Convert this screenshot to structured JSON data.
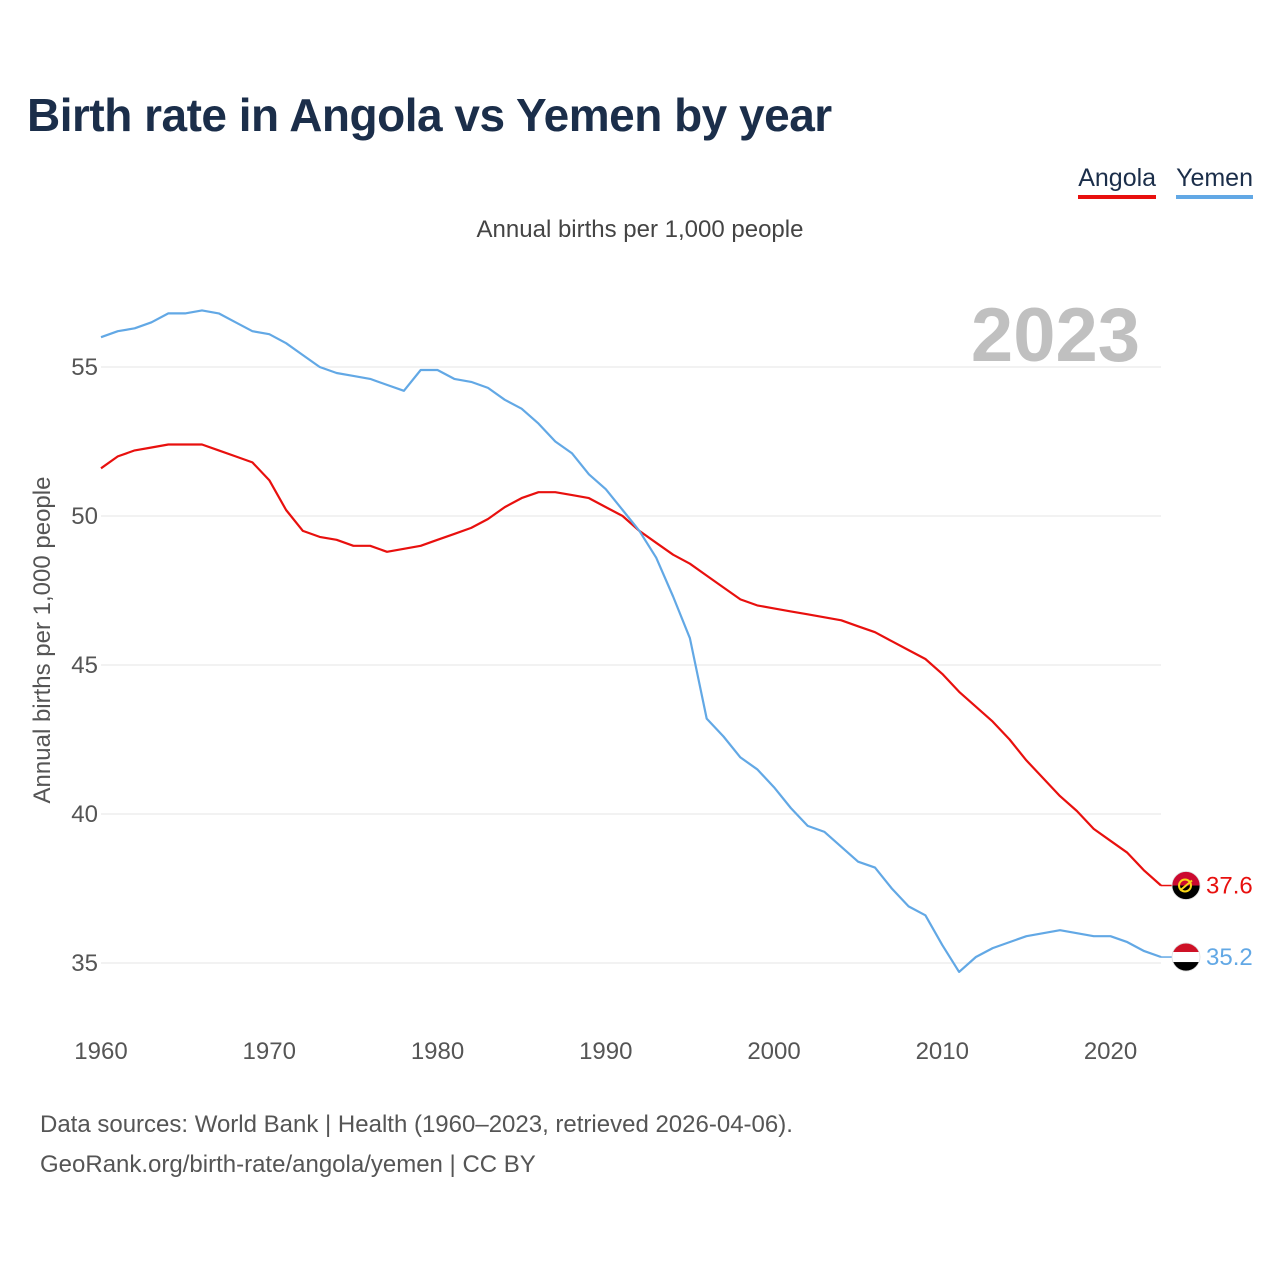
{
  "title": "Birth rate in Angola vs Yemen by year",
  "subtitle": "Annual births per 1,000 people",
  "legend": {
    "angola": "Angola",
    "yemen": "Yemen"
  },
  "footer": {
    "line1": "Data sources: World Bank | Health (1960–2023, retrieved 2026-04-06).",
    "line2": "GeoRank.org/birth-rate/angola/yemen | CC BY"
  },
  "colors": {
    "angola": "#e8100e",
    "yemen": "#62a8e5"
  },
  "chart_data": {
    "type": "line",
    "title": "Birth rate in Angola vs Yemen by year",
    "ylabel": "Annual births per 1,000 people",
    "xlabel": "",
    "xlim": [
      1960,
      2023
    ],
    "ylim": [
      33.5,
      57.5
    ],
    "x_ticks": [
      1960,
      1970,
      1980,
      1990,
      2000,
      2010,
      2020
    ],
    "y_ticks": [
      35,
      40,
      45,
      50,
      55
    ],
    "year_label": "2023",
    "x": [
      1960,
      1961,
      1962,
      1963,
      1964,
      1965,
      1966,
      1967,
      1968,
      1969,
      1970,
      1971,
      1972,
      1973,
      1974,
      1975,
      1976,
      1977,
      1978,
      1979,
      1980,
      1981,
      1982,
      1983,
      1984,
      1985,
      1986,
      1987,
      1988,
      1989,
      1990,
      1991,
      1992,
      1993,
      1994,
      1995,
      1996,
      1997,
      1998,
      1999,
      2000,
      2001,
      2002,
      2003,
      2004,
      2005,
      2006,
      2007,
      2008,
      2009,
      2010,
      2011,
      2012,
      2013,
      2014,
      2015,
      2016,
      2017,
      2018,
      2019,
      2020,
      2021,
      2022,
      2023
    ],
    "series": [
      {
        "name": "Angola",
        "end_label": "37.6",
        "values": [
          51.6,
          52.0,
          52.2,
          52.3,
          52.4,
          52.4,
          52.4,
          52.2,
          52.0,
          51.8,
          51.2,
          50.2,
          49.5,
          49.3,
          49.2,
          49.0,
          49.0,
          48.8,
          48.9,
          49.0,
          49.2,
          49.4,
          49.6,
          49.9,
          50.3,
          50.6,
          50.8,
          50.8,
          50.7,
          50.6,
          50.3,
          50.0,
          49.5,
          49.1,
          48.7,
          48.4,
          48.0,
          47.6,
          47.2,
          47.0,
          46.9,
          46.8,
          46.7,
          46.6,
          46.5,
          46.3,
          46.1,
          45.8,
          45.5,
          45.2,
          44.7,
          44.1,
          43.6,
          43.1,
          42.5,
          41.8,
          41.2,
          40.6,
          40.1,
          39.5,
          39.1,
          38.7,
          38.1,
          37.6
        ]
      },
      {
        "name": "Yemen",
        "end_label": "35.2",
        "values": [
          56.0,
          56.2,
          56.3,
          56.5,
          56.8,
          56.8,
          56.9,
          56.8,
          56.5,
          56.2,
          56.1,
          55.8,
          55.4,
          55.0,
          54.8,
          54.7,
          54.6,
          54.4,
          54.2,
          54.9,
          54.9,
          54.6,
          54.5,
          54.3,
          53.9,
          53.6,
          53.1,
          52.5,
          52.1,
          51.4,
          50.9,
          50.2,
          49.5,
          48.6,
          47.3,
          45.9,
          43.2,
          42.6,
          41.9,
          41.5,
          40.9,
          40.2,
          39.6,
          39.4,
          38.9,
          38.4,
          38.2,
          37.5,
          36.9,
          36.6,
          35.6,
          34.7,
          35.2,
          35.5,
          35.7,
          35.9,
          36.0,
          36.1,
          36.0,
          35.9,
          35.9,
          35.7,
          35.4,
          35.2
        ]
      }
    ]
  }
}
